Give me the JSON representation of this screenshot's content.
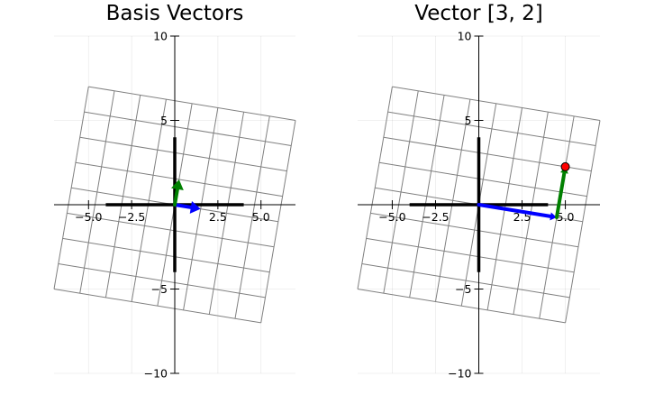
{
  "chart_data": [
    {
      "type": "line",
      "title": "Basis Vectors",
      "xlim": [
        -7,
        7
      ],
      "ylim": [
        -10,
        10
      ],
      "xticks": [
        -5.0,
        -2.5,
        2.5,
        5.0
      ],
      "xtick_labels": [
        "−5.0",
        "−2.5",
        "2.5",
        "5.0"
      ],
      "yticks": [
        10,
        5,
        -5,
        -10
      ],
      "ytick_labels": [
        "10",
        "5",
        "−5",
        "−10"
      ],
      "grid": true,
      "legend": "none",
      "basis": {
        "i_hat": [
          1.5,
          -0.25
        ],
        "j_hat": [
          0.25,
          1.5
        ]
      },
      "grid_range": [
        -4,
        4
      ],
      "original_axes": {
        "x": [
          -4,
          4
        ],
        "y": [
          -4,
          4
        ]
      },
      "vectors": [
        {
          "from": [
            0,
            0
          ],
          "to": [
            1.5,
            -0.25
          ],
          "color": "#0000ff"
        },
        {
          "from": [
            0,
            0
          ],
          "to": [
            0.25,
            1.5
          ],
          "color": "#008000"
        }
      ],
      "points": []
    },
    {
      "type": "line",
      "title": "Vector [3, 2]",
      "xlim": [
        -7,
        7
      ],
      "ylim": [
        -10,
        10
      ],
      "xticks": [
        -5.0,
        -2.5,
        2.5,
        5.0
      ],
      "xtick_labels": [
        "−5.0",
        "−2.5",
        "2.5",
        "5.0"
      ],
      "yticks": [
        10,
        5,
        -5,
        -10
      ],
      "ytick_labels": [
        "10",
        "5",
        "−5",
        "−10"
      ],
      "grid": true,
      "legend": "none",
      "basis": {
        "i_hat": [
          1.5,
          -0.25
        ],
        "j_hat": [
          0.25,
          1.5
        ]
      },
      "grid_range": [
        -4,
        4
      ],
      "original_axes": {
        "x": [
          -4,
          4
        ],
        "y": [
          -4,
          4
        ]
      },
      "vectors": [
        {
          "from": [
            0,
            0
          ],
          "to": [
            4.5,
            -0.75
          ],
          "color": "#0000ff"
        },
        {
          "from": [
            4.5,
            -0.75
          ],
          "to": [
            5.0,
            2.25
          ],
          "color": "#008000"
        }
      ],
      "points": [
        {
          "x": 5.0,
          "y": 2.25,
          "color": "#ff0000"
        }
      ]
    }
  ]
}
